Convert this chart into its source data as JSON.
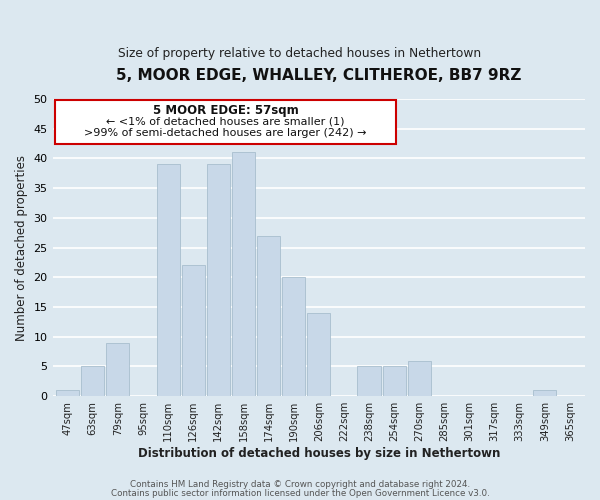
{
  "title": "5, MOOR EDGE, WHALLEY, CLITHEROE, BB7 9RZ",
  "subtitle": "Size of property relative to detached houses in Nethertown",
  "xlabel": "Distribution of detached houses by size in Nethertown",
  "ylabel": "Number of detached properties",
  "bin_labels": [
    "47sqm",
    "63sqm",
    "79sqm",
    "95sqm",
    "110sqm",
    "126sqm",
    "142sqm",
    "158sqm",
    "174sqm",
    "190sqm",
    "206sqm",
    "222sqm",
    "238sqm",
    "254sqm",
    "270sqm",
    "285sqm",
    "301sqm",
    "317sqm",
    "333sqm",
    "349sqm",
    "365sqm"
  ],
  "bar_heights": [
    1,
    5,
    9,
    0,
    39,
    22,
    39,
    41,
    27,
    20,
    14,
    0,
    5,
    5,
    6,
    0,
    0,
    0,
    0,
    1,
    0
  ],
  "bar_color": "#c8d8e8",
  "bar_edge_color": "#a8bece",
  "annotation_title": "5 MOOR EDGE: 57sqm",
  "annotation_line1": "← <1% of detached houses are smaller (1)",
  "annotation_line2": ">99% of semi-detached houses are larger (242) →",
  "annotation_box_facecolor": "#ffffff",
  "annotation_box_edgecolor": "#cc0000",
  "ylim": [
    0,
    50
  ],
  "yticks": [
    0,
    5,
    10,
    15,
    20,
    25,
    30,
    35,
    40,
    45,
    50
  ],
  "bg_color": "#dce8f0",
  "grid_color": "#ffffff",
  "footer1": "Contains HM Land Registry data © Crown copyright and database right 2024.",
  "footer2": "Contains public sector information licensed under the Open Government Licence v3.0."
}
